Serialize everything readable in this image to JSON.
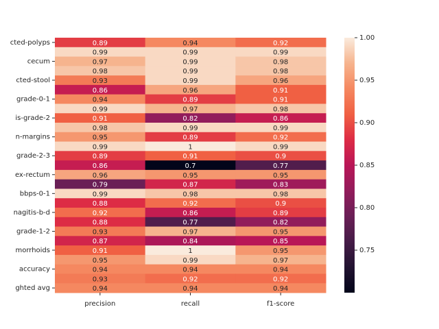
{
  "chart_data": {
    "type": "heatmap",
    "categories": [
      "precision",
      "recall",
      "f1-score"
    ],
    "rows": [
      "cted-polyps",
      null,
      "cecum",
      null,
      "cted-stool",
      null,
      "grade-0-1",
      null,
      "is-grade-2",
      null,
      "n-margins",
      null,
      "grade-2-3",
      null,
      "ex-rectum",
      null,
      "bbps-0-1",
      null,
      "nagitis-b-d",
      null,
      "grade-1-2",
      null,
      "morrhoids",
      null,
      "accuracy",
      null,
      "ghted avg"
    ],
    "values": [
      [
        0.89,
        0.94,
        0.92
      ],
      [
        0.99,
        0.99,
        0.99
      ],
      [
        0.97,
        0.99,
        0.98
      ],
      [
        0.98,
        0.99,
        0.98
      ],
      [
        0.93,
        0.99,
        0.96
      ],
      [
        0.86,
        0.96,
        0.91
      ],
      [
        0.94,
        0.89,
        0.91
      ],
      [
        0.99,
        0.97,
        0.98
      ],
      [
        0.91,
        0.82,
        0.86
      ],
      [
        0.98,
        0.99,
        0.99
      ],
      [
        0.95,
        0.89,
        0.92
      ],
      [
        0.99,
        1,
        0.99
      ],
      [
        0.89,
        0.91,
        0.9
      ],
      [
        0.86,
        0.7,
        0.77
      ],
      [
        0.96,
        0.95,
        0.95
      ],
      [
        0.79,
        0.87,
        0.83
      ],
      [
        0.99,
        0.98,
        0.98
      ],
      [
        0.88,
        0.92,
        0.9
      ],
      [
        0.92,
        0.86,
        0.89
      ],
      [
        0.88,
        0.77,
        0.82
      ],
      [
        0.93,
        0.97,
        0.95
      ],
      [
        0.87,
        0.84,
        0.85
      ],
      [
        0.91,
        1,
        0.95
      ],
      [
        0.95,
        0.99,
        0.97
      ],
      [
        0.94,
        0.94,
        0.94
      ],
      [
        0.93,
        0.92,
        0.92
      ],
      [
        0.94,
        0.94,
        0.94
      ]
    ],
    "colormap": "rocket",
    "clim": [
      0.7,
      1.0
    ],
    "cticks": [
      0.75,
      {
        "value": 0.8,
        "label": "0.80"
      },
      0.85,
      {
        "value": 0.9,
        "label": "0.90"
      },
      0.95,
      {
        "value": 1.0,
        "label": "1.00"
      }
    ]
  }
}
